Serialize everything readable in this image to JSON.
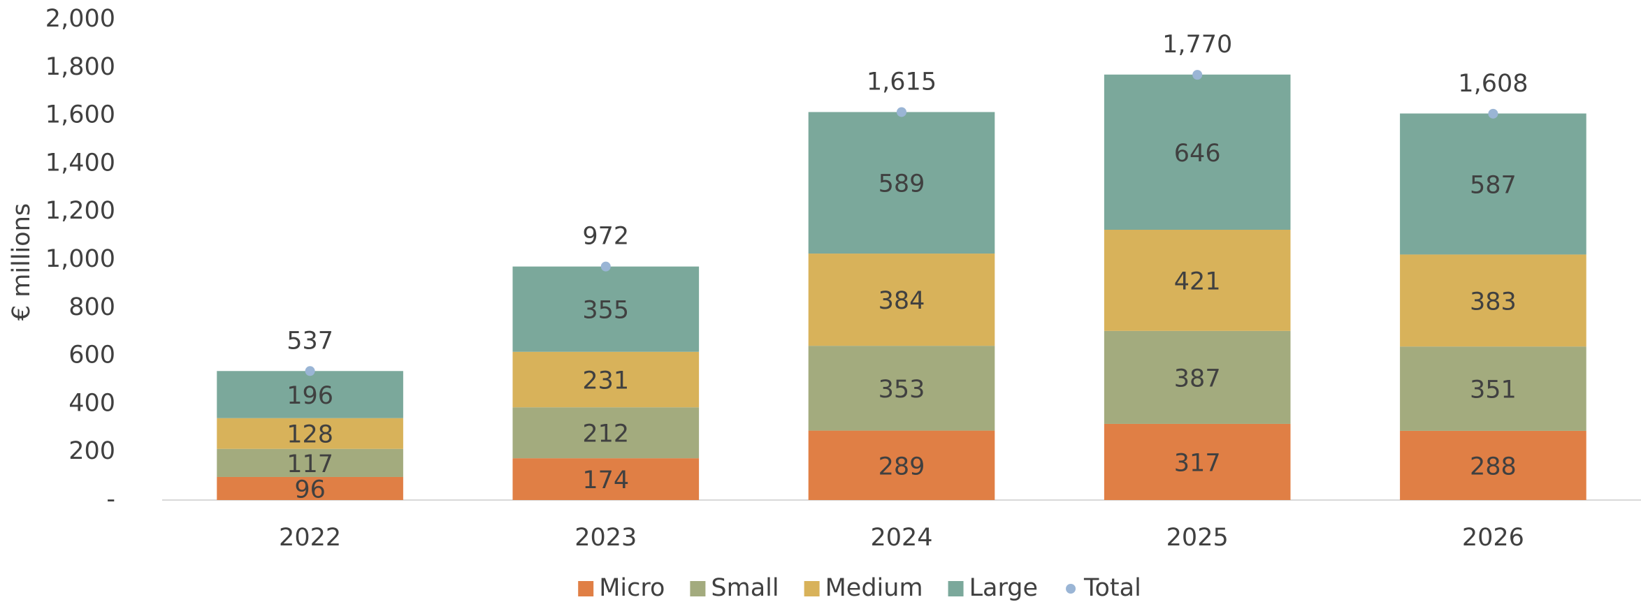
{
  "chart_data": {
    "type": "stacked_bar",
    "ylabel": "€ millions",
    "categories": [
      "2022",
      "2023",
      "2024",
      "2025",
      "2026"
    ],
    "series": [
      {
        "name": "Micro",
        "color": "#e07f45",
        "values": [
          96,
          174,
          289,
          317,
          288
        ]
      },
      {
        "name": "Small",
        "color": "#a3ab7e",
        "values": [
          117,
          212,
          353,
          387,
          351
        ]
      },
      {
        "name": "Medium",
        "color": "#d8b25a",
        "values": [
          128,
          231,
          384,
          421,
          383
        ]
      },
      {
        "name": "Large",
        "color": "#7ba89b",
        "values": [
          196,
          355,
          589,
          646,
          587
        ]
      },
      {
        "name": "Total",
        "color": "#9ab5d5",
        "type": "point",
        "values": [
          537,
          972,
          1615,
          1770,
          1608
        ],
        "value_labels": [
          "537",
          "972",
          "1,615",
          "1,770",
          "1,608"
        ]
      }
    ],
    "ylim": [
      0,
      2000
    ],
    "yticks": [
      {
        "value": 0,
        "label": "-"
      },
      200,
      400,
      600,
      800,
      {
        "value": 1000,
        "label": "1,000"
      },
      {
        "value": 1200,
        "label": "1,200"
      },
      {
        "value": 1400,
        "label": "1,400"
      },
      {
        "value": 1600,
        "label": "1,600"
      },
      {
        "value": 1800,
        "label": "1,800"
      },
      {
        "value": 2000,
        "label": "2,000"
      }
    ],
    "grid": false,
    "legend": "bottom"
  }
}
